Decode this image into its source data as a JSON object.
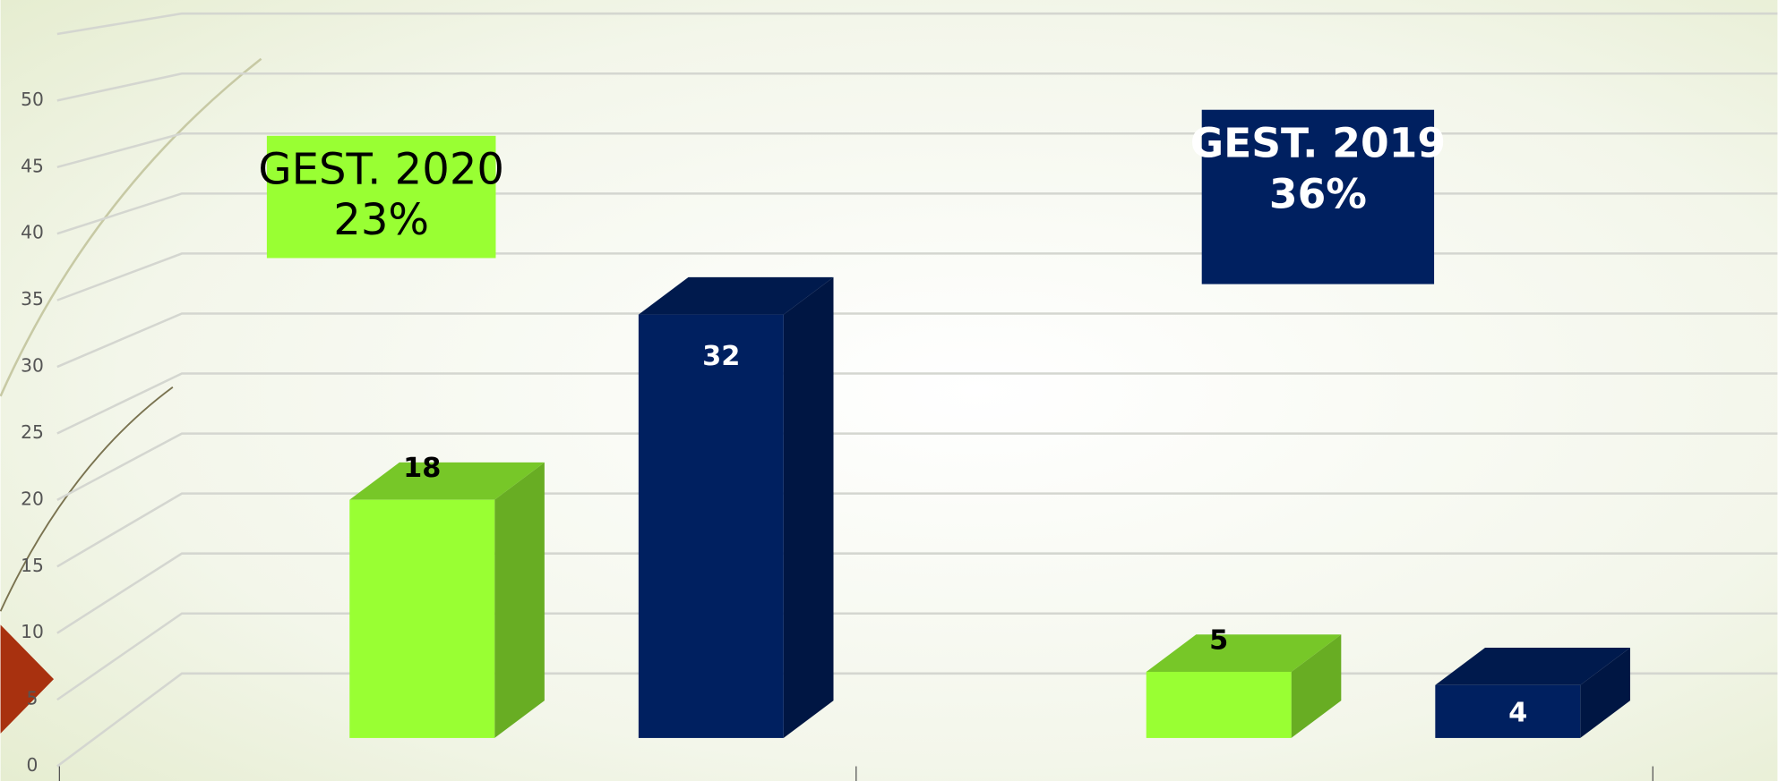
{
  "chart_data": {
    "type": "bar3d",
    "categories": [
      null,
      null
    ],
    "series": [
      {
        "color": "#99ff33",
        "values": [
          18,
          5
        ]
      },
      {
        "color": "#002060",
        "values": [
          32,
          4
        ]
      }
    ],
    "ylim": [
      0,
      55
    ],
    "yticks": [
      0,
      5,
      10,
      15,
      20,
      25,
      30,
      35,
      40,
      45,
      50
    ],
    "grid": true,
    "annotations": [
      {
        "lines": [
          "GEST. 2020",
          "23%"
        ],
        "color": "#99ff33",
        "text_color": "#000000"
      },
      {
        "lines": [
          "GEST. 2019",
          "36%"
        ],
        "color": "#002060",
        "text_color": "#ffffff"
      }
    ]
  }
}
